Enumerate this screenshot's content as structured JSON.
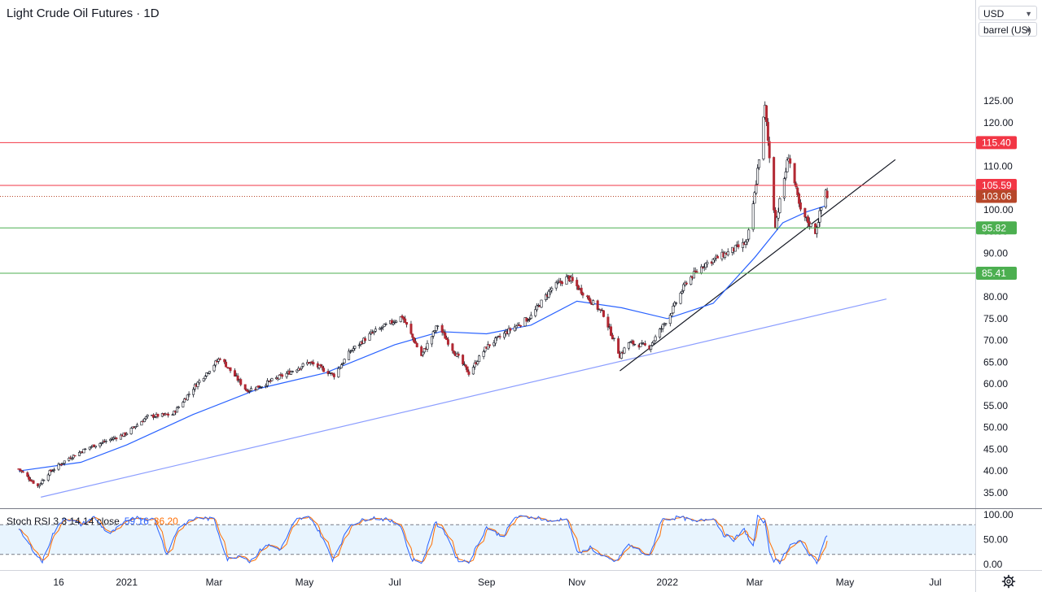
{
  "header": {
    "title": "Light Crude Oil Futures · 1D"
  },
  "controls": {
    "currency": "USD",
    "unit": "barrel (US)"
  },
  "colors": {
    "up": "#26a69a",
    "down": "#ef5350",
    "candle_up_body": "#ffffff",
    "candle_up_border": "#131722",
    "candle_down_body": "#b22833",
    "ma_line": "#2962ff",
    "resistance": "#f23645",
    "support": "#4caf50",
    "stoch_k": "#2962ff",
    "stoch_d": "#ff6d00"
  },
  "chart_data": {
    "type": "candlestick",
    "title": "Light Crude Oil Futures · 1D",
    "y_axis": {
      "range": [
        31,
        132
      ],
      "ticks": [
        "35.00",
        "40.00",
        "45.00",
        "50.00",
        "55.00",
        "60.00",
        "65.00",
        "70.00",
        "75.00",
        "80.00",
        "85.00",
        "90.00",
        "95.00",
        "100.00",
        "105.00",
        "110.00",
        "115.00",
        "120.00",
        "125.00"
      ]
    },
    "x_axis": {
      "ticks": [
        {
          "label": "16",
          "date": "2020-11-16"
        },
        {
          "label": "2021",
          "date": "2021-01-01"
        },
        {
          "label": "Mar",
          "date": "2021-03-01"
        },
        {
          "label": "May",
          "date": "2021-05-01"
        },
        {
          "label": "Jul",
          "date": "2021-07-01"
        },
        {
          "label": "Sep",
          "date": "2021-09-01"
        },
        {
          "label": "Nov",
          "date": "2021-11-01"
        },
        {
          "label": "2022",
          "date": "2022-01-01"
        },
        {
          "label": "Mar",
          "date": "2022-03-01"
        },
        {
          "label": "May",
          "date": "2022-05-01"
        },
        {
          "label": "Jul",
          "date": "2022-07-01"
        }
      ]
    },
    "price_path": [
      [
        "2020-10-20",
        40.5
      ],
      [
        "2020-11-02",
        36.5
      ],
      [
        "2020-11-09",
        39.5
      ],
      [
        "2020-11-23",
        43
      ],
      [
        "2020-12-07",
        45.5
      ],
      [
        "2020-12-31",
        48.5
      ],
      [
        "2021-01-15",
        52.5
      ],
      [
        "2021-02-01",
        53
      ],
      [
        "2021-02-16",
        59.5
      ],
      [
        "2021-03-05",
        66
      ],
      [
        "2021-03-23",
        58.5
      ],
      [
        "2021-04-01",
        59.5
      ],
      [
        "2021-04-20",
        62.5
      ],
      [
        "2021-05-04",
        65
      ],
      [
        "2021-05-21",
        62
      ],
      [
        "2021-06-01",
        67.5
      ],
      [
        "2021-06-15",
        71.5
      ],
      [
        "2021-07-06",
        75.5
      ],
      [
        "2021-07-19",
        66.5
      ],
      [
        "2021-07-30",
        73.5
      ],
      [
        "2021-08-09",
        68
      ],
      [
        "2021-08-20",
        62.5
      ],
      [
        "2021-09-01",
        68.5
      ],
      [
        "2021-09-15",
        72
      ],
      [
        "2021-10-01",
        75.5
      ],
      [
        "2021-10-15",
        82
      ],
      [
        "2021-10-26",
        84.5
      ],
      [
        "2021-11-05",
        81
      ],
      [
        "2021-11-19",
        76
      ],
      [
        "2021-11-30",
        66.5
      ],
      [
        "2021-12-06",
        69.5
      ],
      [
        "2021-12-20",
        68.5
      ],
      [
        "2022-01-03",
        76
      ],
      [
        "2022-01-14",
        83.5
      ],
      [
        "2022-01-26",
        87.5
      ],
      [
        "2022-02-10",
        90
      ],
      [
        "2022-02-24",
        92.5
      ],
      [
        "2022-03-01",
        103.5
      ],
      [
        "2022-03-08",
        123.5
      ],
      [
        "2022-03-15",
        96.5
      ],
      [
        "2022-03-24",
        112.5
      ],
      [
        "2022-04-01",
        99.5
      ],
      [
        "2022-04-11",
        95
      ],
      [
        "2022-04-18",
        104.5
      ],
      [
        "2022-04-19",
        103.06
      ]
    ],
    "moving_average_path": [
      [
        "2020-10-20",
        40
      ],
      [
        "2020-12-01",
        42
      ],
      [
        "2021-01-01",
        46
      ],
      [
        "2021-02-15",
        53
      ],
      [
        "2021-04-01",
        59
      ],
      [
        "2021-05-15",
        62.5
      ],
      [
        "2021-07-01",
        69
      ],
      [
        "2021-08-01",
        72
      ],
      [
        "2021-09-01",
        71.5
      ],
      [
        "2021-10-01",
        73.5
      ],
      [
        "2021-11-01",
        79
      ],
      [
        "2021-12-01",
        77.5
      ],
      [
        "2022-01-01",
        75
      ],
      [
        "2022-02-01",
        78.5
      ],
      [
        "2022-03-01",
        89
      ],
      [
        "2022-03-20",
        97
      ],
      [
        "2022-04-05",
        99.5
      ],
      [
        "2022-04-19",
        101
      ]
    ],
    "horizontal_levels": [
      {
        "label": "115.40",
        "value": 115.4,
        "kind": "resistance",
        "style": "solid"
      },
      {
        "label": "105.59",
        "value": 105.59,
        "kind": "resistance",
        "style": "solid"
      },
      {
        "label": "103.06",
        "value": 103.06,
        "kind": "last-price",
        "style": "dotted"
      },
      {
        "label": "95.82",
        "value": 95.82,
        "kind": "support",
        "style": "solid"
      },
      {
        "label": "85.41",
        "value": 85.41,
        "kind": "support",
        "style": "solid"
      }
    ],
    "trendlines": [
      {
        "from": [
          "2020-11-04",
          34
        ],
        "to": [
          "2022-05-29",
          79.5
        ],
        "color": "#8c9eff"
      },
      {
        "from": [
          "2021-11-30",
          63
        ],
        "to": [
          "2022-06-04",
          111.5
        ],
        "color": "#131722"
      }
    ],
    "stoch_rsi": {
      "label": "Stoch RSI 3 3 14 14 close",
      "k_value": "59.16",
      "d_value": "36.20",
      "range": [
        0,
        100
      ],
      "ticks": [
        "0.00",
        "50.00",
        "100.00"
      ],
      "bands": [
        20,
        80
      ],
      "k_path": [
        [
          "2020-10-20",
          70
        ],
        [
          "2020-11-01",
          20
        ],
        [
          "2020-11-05",
          5
        ],
        [
          "2020-11-12",
          60
        ],
        [
          "2020-11-20",
          95
        ],
        [
          "2020-12-01",
          80
        ],
        [
          "2020-12-10",
          95
        ],
        [
          "2020-12-20",
          60
        ],
        [
          "2021-01-05",
          95
        ],
        [
          "2021-01-20",
          90
        ],
        [
          "2021-01-28",
          20
        ],
        [
          "2021-02-05",
          75
        ],
        [
          "2021-02-18",
          95
        ],
        [
          "2021-03-01",
          90
        ],
        [
          "2021-03-10",
          10
        ],
        [
          "2021-03-20",
          20
        ],
        [
          "2021-03-25",
          5
        ],
        [
          "2021-04-05",
          40
        ],
        [
          "2021-04-15",
          30
        ],
        [
          "2021-04-25",
          90
        ],
        [
          "2021-05-05",
          95
        ],
        [
          "2021-05-12",
          60
        ],
        [
          "2021-05-20",
          10
        ],
        [
          "2021-06-01",
          80
        ],
        [
          "2021-06-15",
          95
        ],
        [
          "2021-06-25",
          90
        ],
        [
          "2021-07-05",
          80
        ],
        [
          "2021-07-12",
          10
        ],
        [
          "2021-07-20",
          5
        ],
        [
          "2021-07-28",
          85
        ],
        [
          "2021-08-05",
          60
        ],
        [
          "2021-08-12",
          10
        ],
        [
          "2021-08-20",
          5
        ],
        [
          "2021-09-01",
          75
        ],
        [
          "2021-09-12",
          55
        ],
        [
          "2021-09-20",
          95
        ],
        [
          "2021-10-05",
          95
        ],
        [
          "2021-10-15",
          85
        ],
        [
          "2021-10-25",
          95
        ],
        [
          "2021-11-02",
          20
        ],
        [
          "2021-11-10",
          35
        ],
        [
          "2021-11-18",
          15
        ],
        [
          "2021-11-28",
          5
        ],
        [
          "2021-12-05",
          40
        ],
        [
          "2021-12-12",
          30
        ],
        [
          "2021-12-20",
          15
        ],
        [
          "2021-12-28",
          90
        ],
        [
          "2022-01-10",
          95
        ],
        [
          "2022-01-20",
          85
        ],
        [
          "2022-02-01",
          95
        ],
        [
          "2022-02-08",
          60
        ],
        [
          "2022-02-15",
          50
        ],
        [
          "2022-02-22",
          70
        ],
        [
          "2022-02-28",
          35
        ],
        [
          "2022-03-03",
          95
        ],
        [
          "2022-03-08",
          85
        ],
        [
          "2022-03-12",
          10
        ],
        [
          "2022-03-18",
          5
        ],
        [
          "2022-03-25",
          40
        ],
        [
          "2022-04-01",
          45
        ],
        [
          "2022-04-07",
          20
        ],
        [
          "2022-04-12",
          5
        ],
        [
          "2022-04-19",
          59
        ]
      ]
    }
  }
}
